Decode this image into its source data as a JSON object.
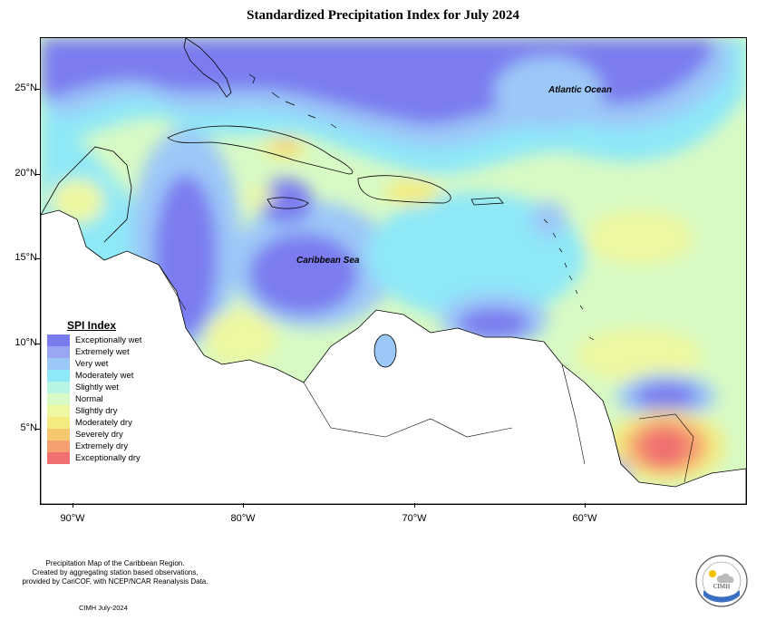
{
  "title": "Standardized Precipitation Index for July 2024",
  "map": {
    "ocean_labels": [
      "Atlantic Ocean",
      "Caribbean Sea"
    ],
    "latitude_labels": [
      "25°N",
      "20°N",
      "15°N",
      "10°N",
      "5°N"
    ],
    "longitude_labels": [
      "90°W",
      "80°W",
      "70°W",
      "60°W"
    ]
  },
  "legend": {
    "title": "SPI Index",
    "items": [
      {
        "label": "Exceptionally wet",
        "color": "#7b7bf0"
      },
      {
        "label": "Extremely wet",
        "color": "#9aa6f4"
      },
      {
        "label": "Very wet",
        "color": "#9cc8f8"
      },
      {
        "label": "Moderately wet",
        "color": "#8ee8f8"
      },
      {
        "label": "Slightly wet",
        "color": "#b8f4e4"
      },
      {
        "label": "Normal",
        "color": "#d8fac4"
      },
      {
        "label": "Slightly dry",
        "color": "#eef8a0"
      },
      {
        "label": "Moderately dry",
        "color": "#f4ec80"
      },
      {
        "label": "Severely dry",
        "color": "#f6c870"
      },
      {
        "label": "Extremely dry",
        "color": "#f6a070"
      },
      {
        "label": "Exceptionally dry",
        "color": "#f07070"
      }
    ]
  },
  "footer": {
    "line1": "Precipitation Map of the Caribbean Region.",
    "line2": "Created by aggregating station based observations,",
    "line3": "provided by CariCOF, with NCEP/NCAR Reanalysis Data.",
    "date": "CIMH July-2024"
  },
  "logo": {
    "text": "CIMH",
    "icon": "cimh-logo-sun-cloud-icon"
  }
}
